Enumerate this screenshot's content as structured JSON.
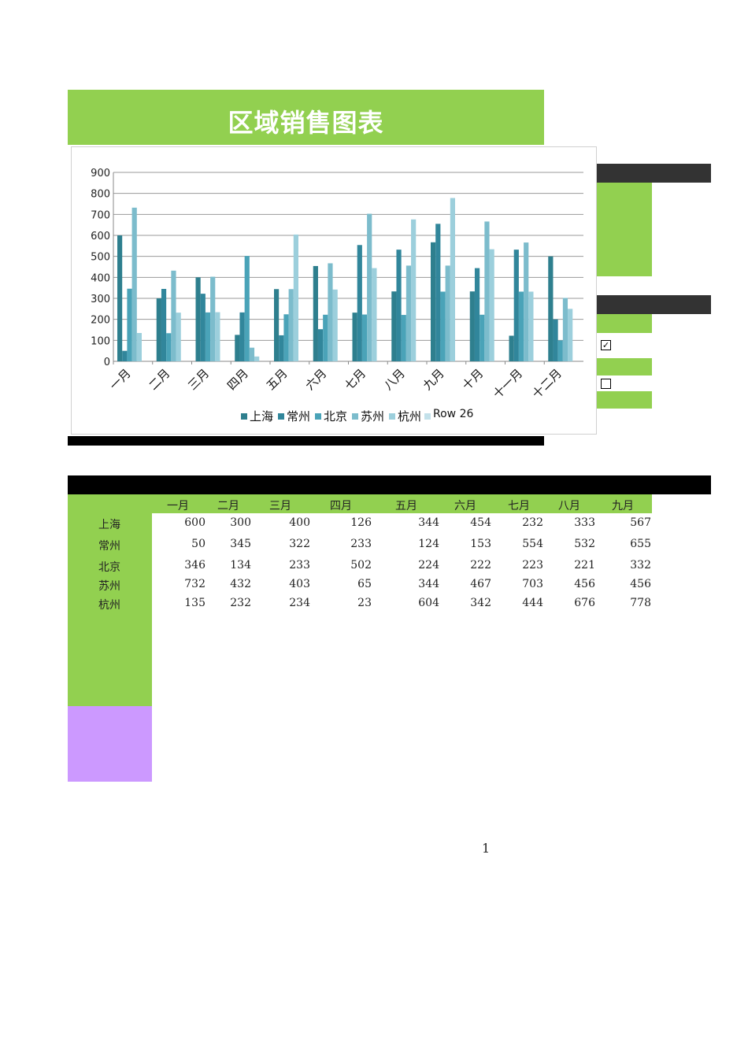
{
  "title": "区域销售图表",
  "colors": {
    "green": "#92d050",
    "purple": "#cc99ff",
    "dark": "#333333",
    "series": [
      "#2e7f8e",
      "#31869b",
      "#4aa3b8",
      "#7cbccc",
      "#9ccfdc",
      "#c3e1ea"
    ]
  },
  "chart_data": {
    "type": "bar",
    "categories": [
      "一月",
      "二月",
      "三月",
      "四月",
      "五月",
      "六月",
      "七月",
      "八月",
      "九月",
      "十月",
      "十一月",
      "十二月"
    ],
    "series": [
      {
        "name": "上海",
        "values": [
          600,
          300,
          400,
          126,
          344,
          454,
          232,
          333,
          567,
          333,
          122,
          500
        ]
      },
      {
        "name": "常州",
        "values": [
          50,
          345,
          322,
          233,
          124,
          153,
          554,
          532,
          655,
          444,
          532,
          200
        ]
      },
      {
        "name": "北京",
        "values": [
          346,
          134,
          233,
          502,
          224,
          222,
          223,
          221,
          332,
          222,
          332,
          100
        ]
      },
      {
        "name": "苏州",
        "values": [
          732,
          432,
          403,
          65,
          344,
          467,
          703,
          456,
          456,
          666,
          566,
          302
        ]
      },
      {
        "name": "杭州",
        "values": [
          135,
          232,
          234,
          23,
          604,
          342,
          444,
          676,
          778,
          534,
          332,
          250
        ]
      }
    ],
    "extra_legend": "Row 26",
    "ylim": [
      0,
      900
    ],
    "yticks": [
      0,
      100,
      200,
      300,
      400,
      500,
      600,
      700,
      800,
      900
    ],
    "legend": "bottom",
    "grid": true
  },
  "table": {
    "headers": [
      "一月",
      "二月",
      "三月",
      "四月",
      "五月",
      "六月",
      "七月",
      "八月",
      "九月"
    ],
    "rows": [
      {
        "label": "上海",
        "values": [
          "600",
          "300",
          "400",
          "126",
          "344",
          "454",
          "232",
          "333",
          "567"
        ]
      },
      {
        "label": "常州",
        "values": [
          "50",
          "345",
          "322",
          "233",
          "124",
          "153",
          "554",
          "532",
          "655"
        ]
      },
      {
        "label": "北京",
        "values": [
          "346",
          "134",
          "233",
          "502",
          "224",
          "222",
          "223",
          "221",
          "332"
        ]
      },
      {
        "label": "苏州",
        "values": [
          "732",
          "432",
          "403",
          "65",
          "344",
          "467",
          "703",
          "456",
          "456"
        ]
      },
      {
        "label": "杭州",
        "values": [
          "135",
          "232",
          "234",
          "23",
          "604",
          "342",
          "444",
          "676",
          "778"
        ]
      }
    ]
  },
  "checkboxes": [
    {
      "checked_mark": "✓"
    },
    {
      "checked_mark": ""
    }
  ],
  "page_number": "1"
}
